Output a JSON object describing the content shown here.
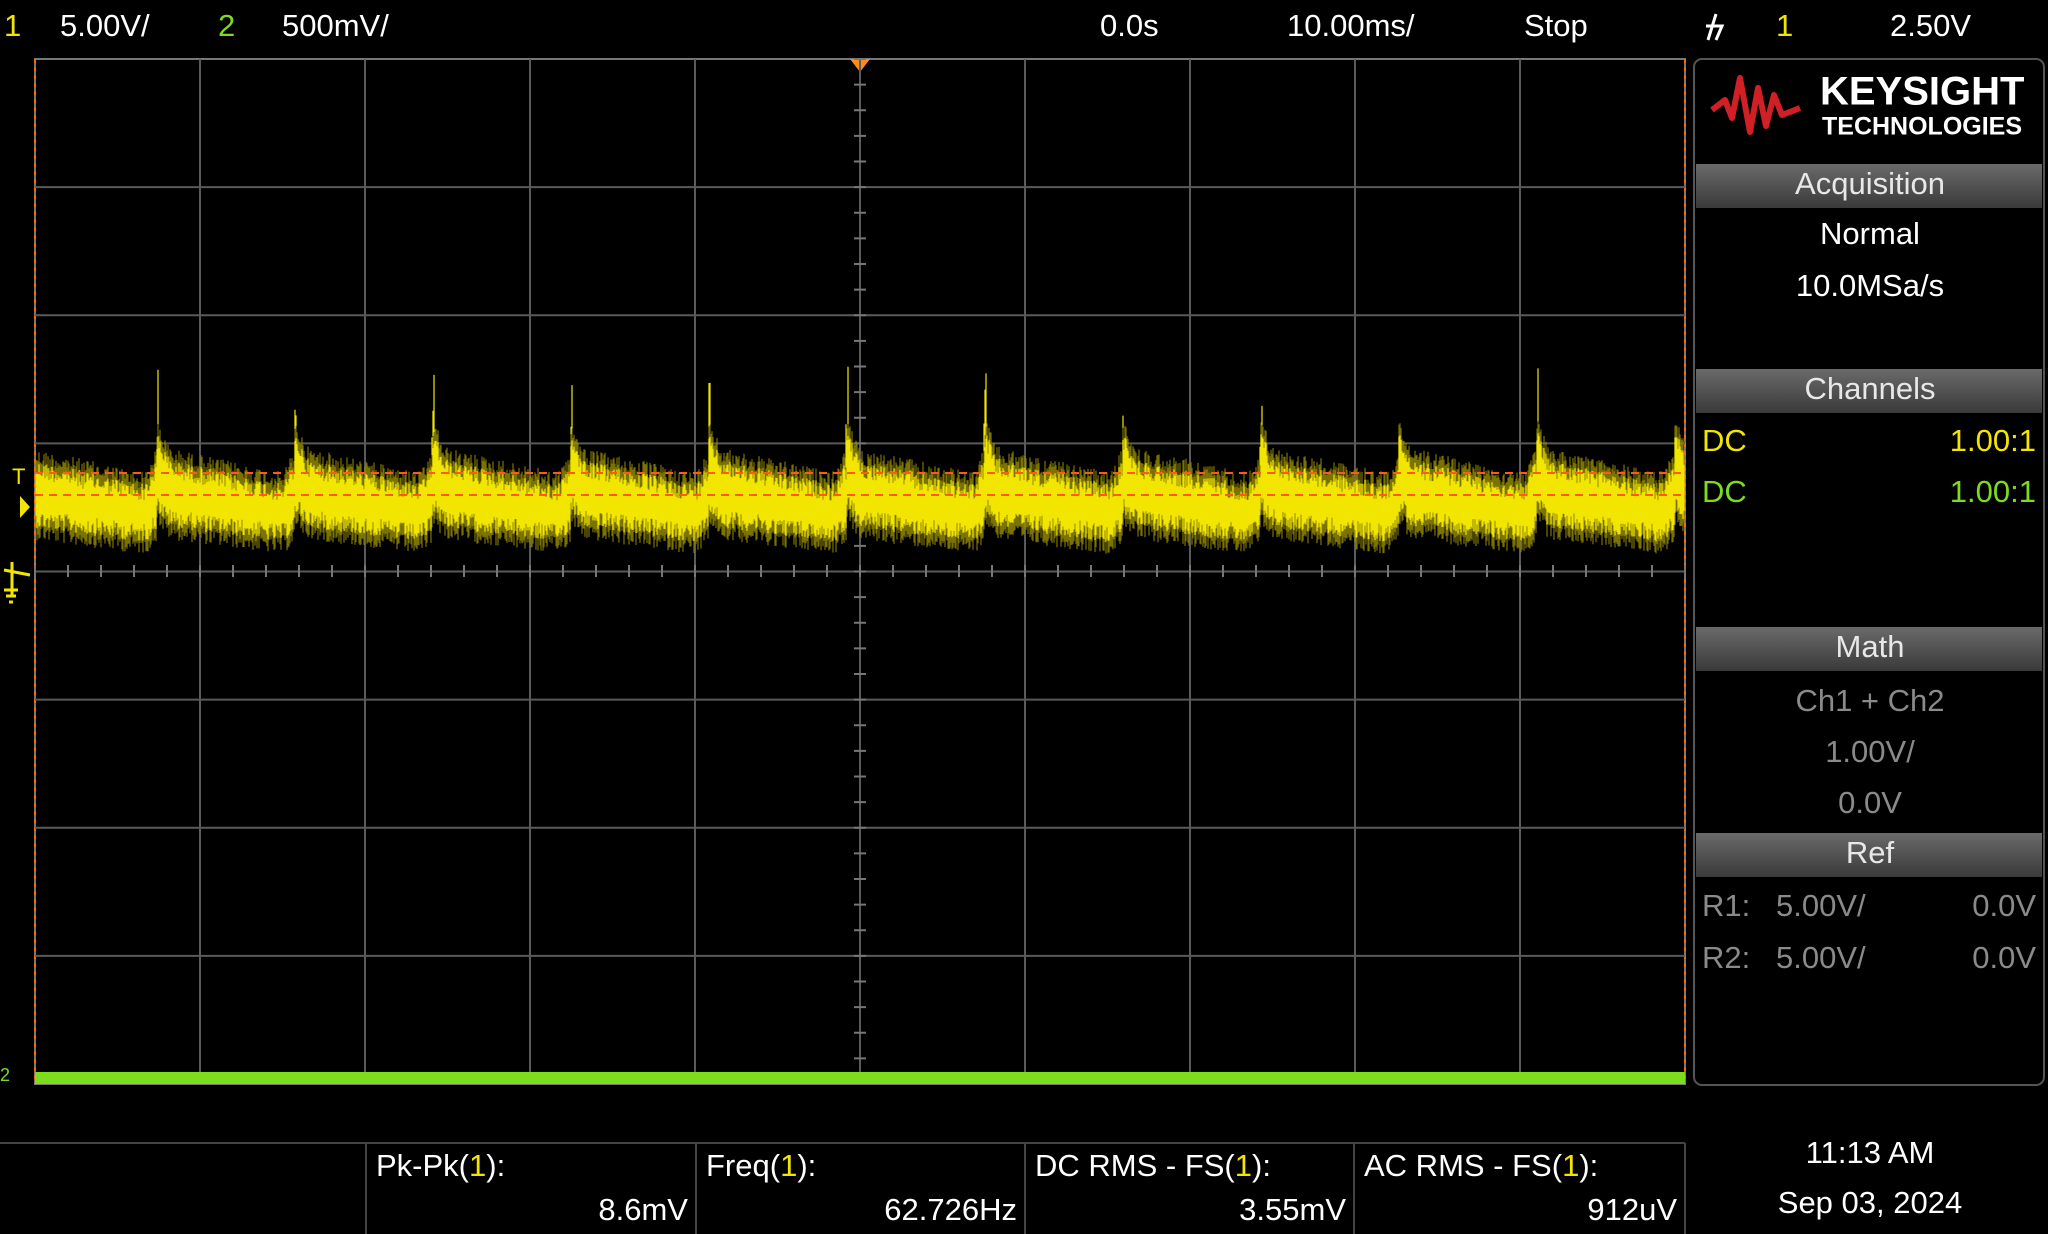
{
  "status_bar": {
    "ch1_number": "1",
    "ch1_scale": "5.00V/",
    "ch2_number": "2",
    "ch2_scale": "500mV/",
    "time_delay": "0.0s",
    "time_scale": "10.00ms/",
    "run_state": "Stop",
    "trigger_source": "1",
    "trigger_level": "2.50V"
  },
  "markers": {
    "trigger": "T",
    "ch2": "2"
  },
  "brand": {
    "name": "KEYSIGHT",
    "subtitle": "TECHNOLOGIES"
  },
  "acquisition": {
    "header": "Acquisition",
    "mode": "Normal",
    "rate": "10.0MSa/s"
  },
  "channels": {
    "header": "Channels",
    "rows": [
      {
        "coupling": "DC",
        "probe": "1.00:1"
      },
      {
        "coupling": "DC",
        "probe": "1.00:1"
      }
    ]
  },
  "math": {
    "header": "Math",
    "function": "Ch1 + Ch2",
    "scale": "1.00V/",
    "offset": "0.0V"
  },
  "ref": {
    "header": "Ref",
    "rows": [
      {
        "name": "R1:",
        "scale": "5.00V/",
        "offset": "0.0V"
      },
      {
        "name": "R2:",
        "scale": "5.00V/",
        "offset": "0.0V"
      }
    ]
  },
  "measurements": [
    {
      "label": [
        "Pk-Pk(",
        "1",
        "):"
      ],
      "value": "8.6mV"
    },
    {
      "label": [
        "Freq(",
        "1",
        "):"
      ],
      "value": "62.726Hz"
    },
    {
      "label": [
        "DC RMS - FS(",
        "1",
        "):"
      ],
      "value": "3.55mV"
    },
    {
      "label": [
        "AC RMS - FS(",
        "1",
        "):"
      ],
      "value": "912uV"
    }
  ],
  "clock": {
    "time": "11:13 AM",
    "date": "Sep 03, 2024"
  }
}
